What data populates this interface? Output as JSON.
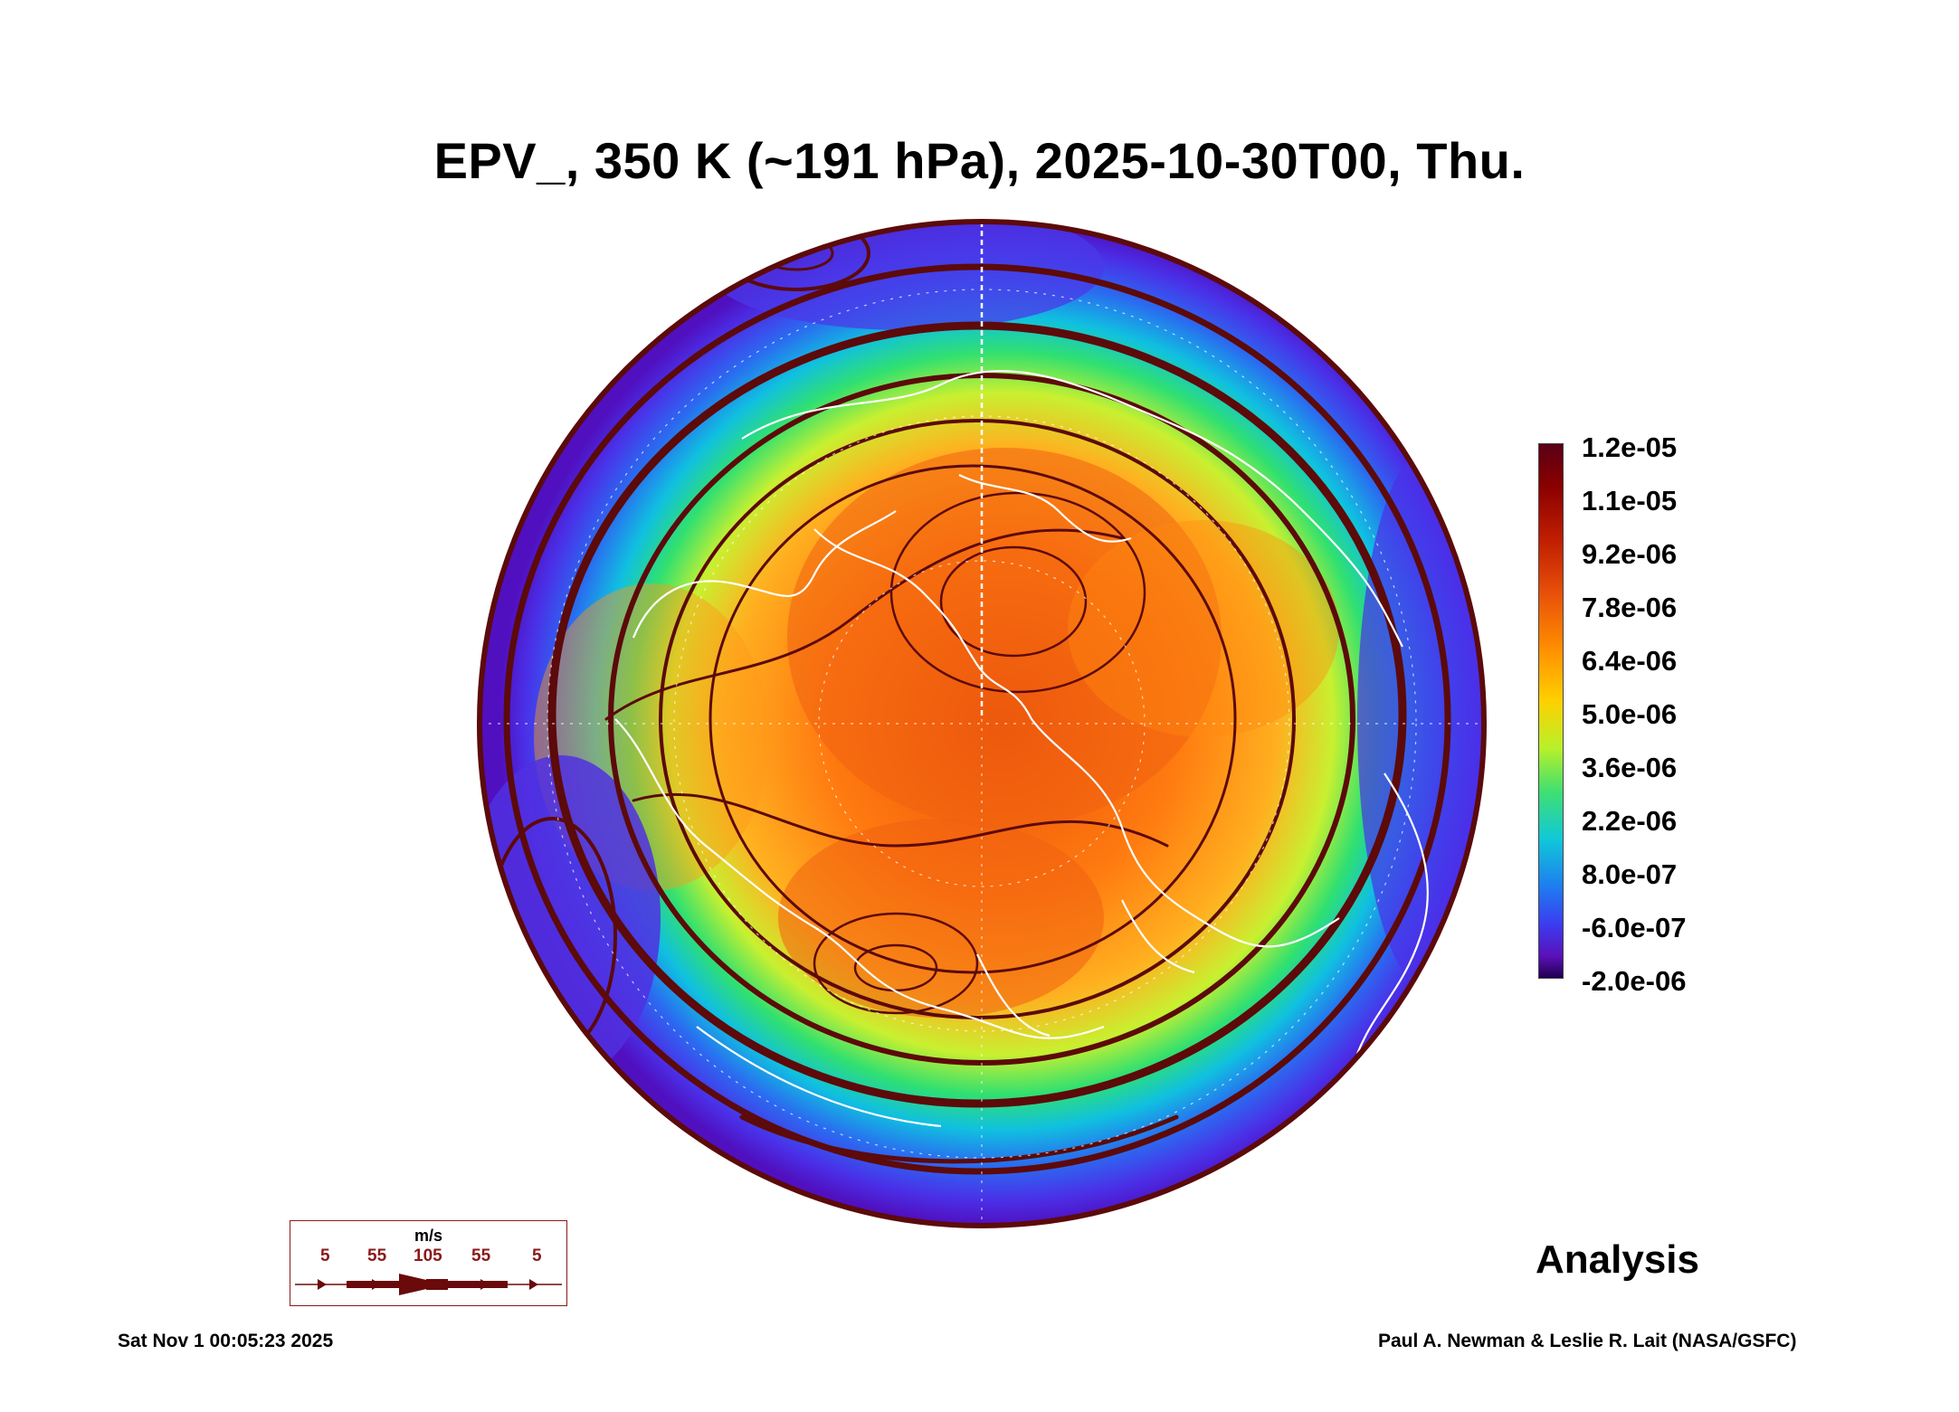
{
  "title": "EPV_, 350 K (~191 hPa), 2025-10-30T00, Thu.",
  "colorbar": {
    "labels": [
      "1.2e-05",
      "1.1e-05",
      "9.2e-06",
      "7.8e-06",
      "6.4e-06",
      "5.0e-06",
      "3.6e-06",
      "2.2e-06",
      "8.0e-07",
      "-6.0e-07",
      "-2.0e-06"
    ],
    "colors": {
      "high": "#6a0010",
      "mid": "#ffd000",
      "low": "#200050"
    }
  },
  "map": {
    "projection": "north-polar-orthographic",
    "streamline_color": "#5c0a0a",
    "coastline_color": "#ffffff"
  },
  "legend": {
    "unit": "m/s",
    "speeds": [
      "5",
      "55",
      "105",
      "55",
      "5"
    ]
  },
  "label_analysis": "Analysis",
  "timestamp": "Sat Nov  1 00:05:23 2025",
  "credit": "Paul A. Newman & Leslie R. Lait (NASA/GSFC)"
}
